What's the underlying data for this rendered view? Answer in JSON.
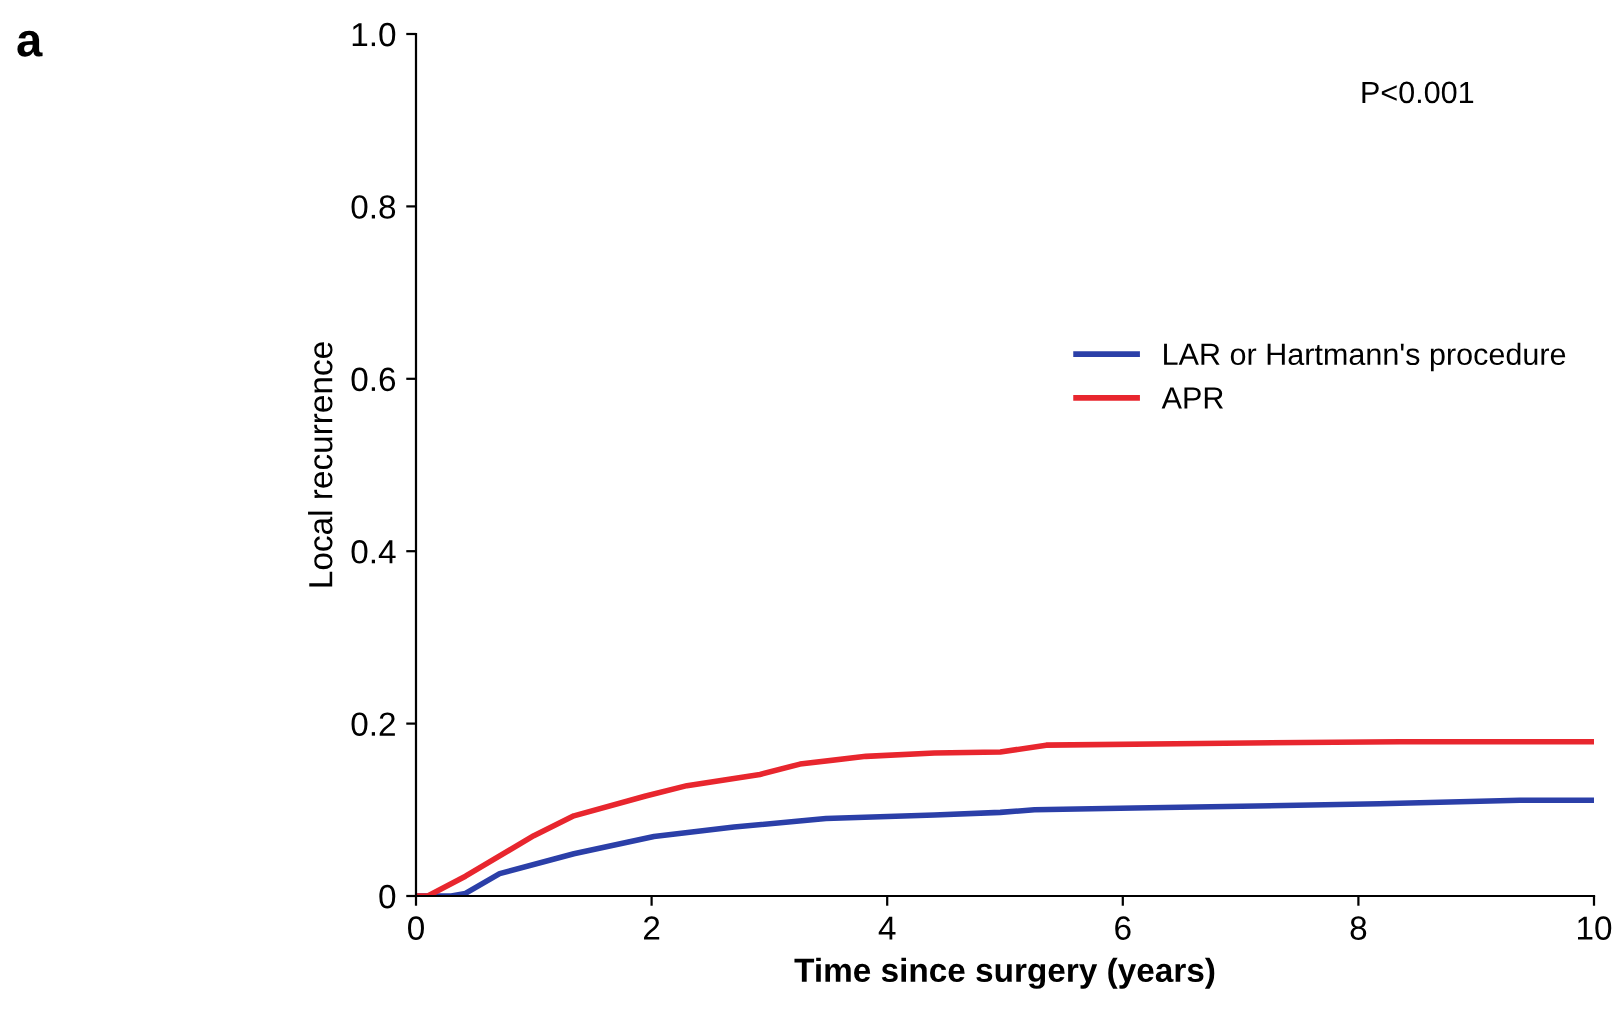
{
  "chart_data": {
    "type": "line",
    "title": "a",
    "xlabel": "Time since surgery (years)",
    "ylabel": "Local recurrence",
    "xlim": [
      0,
      10
    ],
    "ylim": [
      0,
      1.0
    ],
    "xticks": [
      0,
      2,
      4,
      6,
      8,
      10
    ],
    "yticks": [
      0,
      0.2,
      0.4,
      0.6,
      0.8,
      {
        "value": 1.0,
        "label": "1.0"
      }
    ],
    "grid": false,
    "legend": "right",
    "marker": "none",
    "line_style": "solid",
    "annotations": [
      "P<0.001"
    ],
    "series": [
      {
        "name": "LAR or Hartmann's procedure",
        "color": "#2b3fa8",
        "x": [
          0,
          0.3,
          0.42,
          0.71,
          1.34,
          2.02,
          2.7,
          3.48,
          4.4,
          4.96,
          5.25,
          6.1,
          8.18,
          9.37,
          10
        ],
        "values": [
          0,
          0,
          0.003,
          0.026,
          0.049,
          0.069,
          0.08,
          0.09,
          0.094,
          0.097,
          0.1,
          0.102,
          0.107,
          0.111,
          0.111
        ]
      },
      {
        "name": "APR",
        "color": "#e8262e",
        "x": [
          0,
          0.1,
          0.42,
          1.0,
          1.34,
          1.95,
          2.3,
          2.92,
          3.26,
          3.82,
          4.4,
          4.96,
          5.35,
          6.66,
          8.35,
          10
        ],
        "values": [
          0,
          0,
          0.023,
          0.07,
          0.093,
          0.116,
          0.128,
          0.141,
          0.153,
          0.162,
          0.166,
          0.167,
          0.175,
          0.177,
          0.179,
          0.179
        ]
      }
    ]
  }
}
